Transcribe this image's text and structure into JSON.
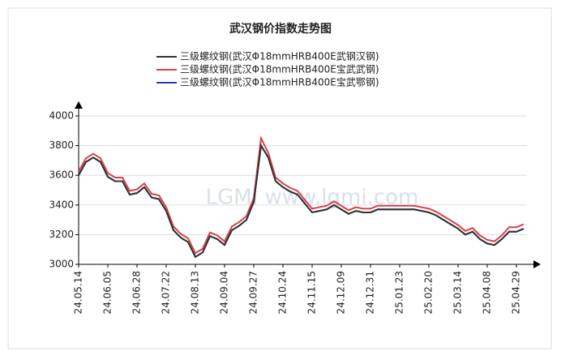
{
  "chart_data": {
    "type": "line",
    "title": "武汉钢价指数走势图",
    "watermark": "LGMI www.lgmi.com",
    "categories": [
      "24.05.14",
      null,
      null,
      null,
      "24.06.05",
      null,
      null,
      null,
      "24.06.28",
      null,
      null,
      null,
      "24.07.22",
      null,
      null,
      null,
      "24.08.13",
      null,
      null,
      null,
      "24.09.04",
      null,
      null,
      null,
      "24.09.27",
      null,
      null,
      null,
      "24.10.24",
      null,
      null,
      null,
      "24.11.15",
      null,
      null,
      null,
      "24.12.09",
      null,
      null,
      null,
      "24.12.31",
      null,
      null,
      null,
      "25.01.23",
      null,
      null,
      null,
      "25.02.20",
      null,
      null,
      null,
      "25.03.14",
      null,
      null,
      null,
      "25.04.08",
      null,
      null,
      null,
      "25.04.29",
      null
    ],
    "series": [
      {
        "name": "三级螺纹钢(武汉Φ18mmHRB400E武钢汉钢)",
        "color": "#333333",
        "values": [
          3600,
          3690,
          3720,
          3690,
          3590,
          3560,
          3560,
          3470,
          3480,
          3520,
          3450,
          3440,
          3360,
          3230,
          3180,
          3150,
          3050,
          3080,
          3190,
          3170,
          3130,
          3230,
          3260,
          3300,
          3420,
          3800,
          3720,
          3560,
          3520,
          3490,
          3470,
          3410,
          3350,
          3360,
          3370,
          3400,
          3370,
          3340,
          3360,
          3350,
          3350,
          3370,
          3370,
          3370,
          3370,
          3370,
          3370,
          3360,
          3350,
          3330,
          3300,
          3270,
          3240,
          3200,
          3220,
          3170,
          3140,
          3130,
          3170,
          3220,
          3220,
          3240
        ]
      },
      {
        "name": "三级螺纹钢(武汉Φ18mmHRB400E宝武武钢)",
        "color": "#d9414a",
        "values": [
          3625,
          3715,
          3745,
          3715,
          3615,
          3585,
          3585,
          3495,
          3505,
          3545,
          3475,
          3465,
          3385,
          3255,
          3205,
          3175,
          3075,
          3105,
          3215,
          3195,
          3155,
          3255,
          3285,
          3325,
          3445,
          3850,
          3750,
          3585,
          3545,
          3515,
          3495,
          3435,
          3375,
          3385,
          3395,
          3425,
          3395,
          3365,
          3385,
          3375,
          3375,
          3395,
          3395,
          3395,
          3395,
          3395,
          3395,
          3385,
          3375,
          3355,
          3325,
          3295,
          3265,
          3225,
          3245,
          3195,
          3165,
          3155,
          3195,
          3250,
          3250,
          3270
        ]
      },
      {
        "name": "三级螺纹钢(武汉Φ18mmHRB400E宝武鄂钢)",
        "color": "#2b3f9e",
        "values": [
          3600,
          3690,
          3720,
          3690,
          3590,
          3560,
          3560,
          3470,
          3480,
          3520,
          3450,
          3440,
          3360,
          3230,
          3180,
          3150,
          3050,
          3080,
          3190,
          3170,
          3130,
          3230,
          3260,
          3300,
          3420,
          3800,
          3720,
          3560,
          3520,
          3490,
          3470,
          3410,
          3350,
          3360,
          3370,
          3400,
          3370,
          3340,
          3360,
          3350,
          3350,
          3370,
          3370,
          3370,
          3370,
          3370,
          3370,
          3360,
          3350,
          3330,
          3300,
          3270,
          3240,
          3200,
          3220,
          3170,
          3140,
          3130,
          3170,
          3220,
          3220,
          3240
        ]
      }
    ],
    "ylim": [
      3000,
      4000
    ],
    "yticks": [
      3000,
      3200,
      3400,
      3600,
      3800,
      4000
    ],
    "grid": true
  }
}
